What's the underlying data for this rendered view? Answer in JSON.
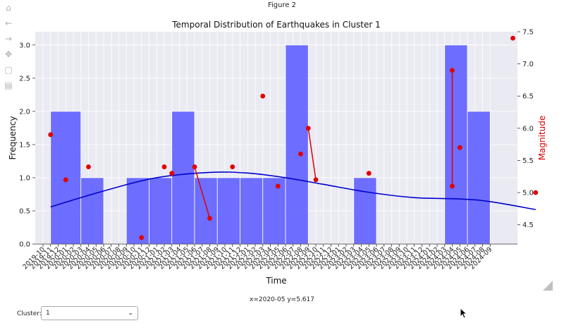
{
  "window": {
    "title": "Figure 2"
  },
  "toolbar": [
    {
      "name": "home-icon",
      "glyph": "⌂"
    },
    {
      "name": "back-icon",
      "glyph": "←"
    },
    {
      "name": "forward-icon",
      "glyph": "→"
    },
    {
      "name": "pan-icon",
      "glyph": "✥"
    },
    {
      "name": "zoom-icon",
      "glyph": "▢"
    },
    {
      "name": "save-icon",
      "glyph": "▤"
    }
  ],
  "status": {
    "coords": "x=2020-05 y=5.617"
  },
  "controls": {
    "cluster_label": "Cluster:",
    "cluster_value": "1"
  },
  "chart_data": {
    "type": "bar",
    "title": "Temporal Distribution of Earthquakes in Cluster 1",
    "xlabel": "Time",
    "ylabel": "Frequency",
    "y2label": "Magnitude",
    "ylim": [
      0,
      3.2
    ],
    "y2lim": [
      4.2,
      7.5
    ],
    "yticks": [
      "0.0",
      "0.5",
      "1.0",
      "1.5",
      "2.0",
      "2.5",
      "3.0"
    ],
    "y2ticks": [
      "4.5",
      "5.0",
      "5.5",
      "6.0",
      "6.5",
      "7.0",
      "7.5"
    ],
    "grid": true,
    "categories": [
      "2019-10",
      "2019-11",
      "2019-12",
      "2020-01",
      "2020-02",
      "2020-03",
      "2020-04",
      "2020-05",
      "2020-06",
      "2020-07",
      "2020-08",
      "2020-09",
      "2020-10",
      "2020-11",
      "2020-12",
      "2021-01",
      "2021-02",
      "2021-03",
      "2021-04",
      "2021-05",
      "2021-06",
      "2021-07",
      "2021-08",
      "2021-09",
      "2021-10",
      "2021-11",
      "2021-12",
      "2022-01",
      "2022-02",
      "2022-03",
      "2022-04",
      "2022-05",
      "2022-06",
      "2022-07",
      "2022-08",
      "2022-09",
      "2022-10",
      "2022-11",
      "2022-12",
      "2023-01",
      "2023-02",
      "2023-03",
      "2023-04",
      "2023-05",
      "2023-06",
      "2023-07",
      "2023-08",
      "2023-09",
      "2023-10",
      "2023-11",
      "2023-12",
      "2024-01",
      "2024-02",
      "2024-03",
      "2024-04",
      "2024-05",
      "2024-06",
      "2024-07",
      "2024-08",
      "2024-09"
    ],
    "histogram": [
      {
        "start": "2019-11",
        "end": "2020-03",
        "value": 2
      },
      {
        "start": "2020-03",
        "end": "2020-06",
        "value": 1
      },
      {
        "start": "2020-09",
        "end": "2020-12",
        "value": 1
      },
      {
        "start": "2020-12",
        "end": "2021-03",
        "value": 1
      },
      {
        "start": "2021-03",
        "end": "2021-06",
        "value": 2
      },
      {
        "start": "2021-06",
        "end": "2021-09",
        "value": 1
      },
      {
        "start": "2021-09",
        "end": "2021-12",
        "value": 1
      },
      {
        "start": "2021-12",
        "end": "2022-03",
        "value": 1
      },
      {
        "start": "2022-03",
        "end": "2022-06",
        "value": 1
      },
      {
        "start": "2022-06",
        "end": "2022-09",
        "value": 3
      },
      {
        "start": "2023-03",
        "end": "2023-06",
        "value": 1
      },
      {
        "start": "2024-03",
        "end": "2024-06",
        "value": 3
      },
      {
        "start": "2024-06",
        "end": "2024-09",
        "value": 2
      }
    ],
    "magnitude_points": [
      {
        "x": "2019-11",
        "y": 5.9
      },
      {
        "x": "2020-01",
        "y": 5.2
      },
      {
        "x": "2020-04",
        "y": 5.4
      },
      {
        "x": "2020-11",
        "y": 4.3
      },
      {
        "x": "2021-02",
        "y": 5.4
      },
      {
        "x": "2021-03",
        "y": 5.3
      },
      {
        "x": "2021-06",
        "y": 5.4
      },
      {
        "x": "2021-08",
        "y": 4.6
      },
      {
        "x": "2021-11",
        "y": 5.4
      },
      {
        "x": "2022-03",
        "y": 6.5
      },
      {
        "x": "2022-05",
        "y": 5.1
      },
      {
        "x": "2022-08",
        "y": 5.6
      },
      {
        "x": "2022-09",
        "y": 6.0
      },
      {
        "x": "2022-10",
        "y": 5.2
      },
      {
        "x": "2023-05",
        "y": 5.3
      },
      {
        "x": "2024-04",
        "y": 6.9
      },
      {
        "x": "2024-05",
        "y": 5.7
      },
      {
        "x": "2024-04",
        "y": 5.1
      },
      {
        "x": "2024-12",
        "y": 7.4
      },
      {
        "x": "2025-03",
        "y": 5.0
      }
    ],
    "magnitude_segments": [
      {
        "x1": "2021-08",
        "y1": 4.6,
        "x2": "2021-06",
        "y2": 5.4
      },
      {
        "x1": "2022-09",
        "y1": 6.0,
        "x2": "2022-10",
        "y2": 5.2
      },
      {
        "x1": "2024-04",
        "y1": 6.9,
        "x2": "2024-04",
        "y2": 5.1
      }
    ],
    "trend": [
      {
        "x": "2019-11",
        "y": 0.56
      },
      {
        "x": "2020-06",
        "y": 0.8
      },
      {
        "x": "2021-01",
        "y": 1.0
      },
      {
        "x": "2021-08",
        "y": 1.08
      },
      {
        "x": "2022-01",
        "y": 1.07
      },
      {
        "x": "2022-06",
        "y": 1.0
      },
      {
        "x": "2022-11",
        "y": 0.9
      },
      {
        "x": "2023-05",
        "y": 0.78
      },
      {
        "x": "2023-11",
        "y": 0.7
      },
      {
        "x": "2024-05",
        "y": 0.68
      },
      {
        "x": "2024-09",
        "y": 0.64
      },
      {
        "x": "2025-03",
        "y": 0.52
      }
    ],
    "colors": {
      "bar": "#6666ff",
      "points": "#e00000",
      "trend": "#0000cc",
      "plot_bg": "#eaeaf2"
    }
  }
}
